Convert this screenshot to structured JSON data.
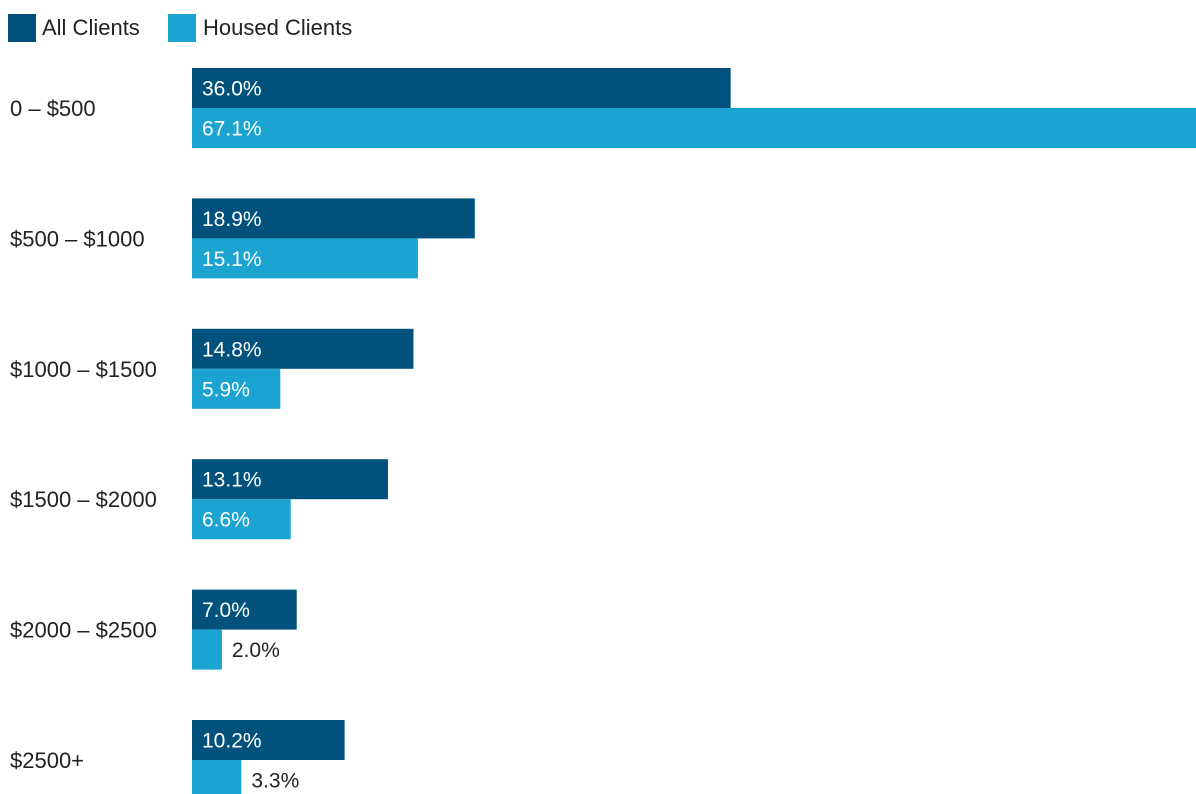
{
  "colors": {
    "all_clients": "#00527C",
    "housed_clients": "#1BA3D1",
    "label_inside": "#ffffff",
    "label_outside": "#222222"
  },
  "chart_data": {
    "type": "bar",
    "orientation": "horizontal",
    "categories": [
      "0 – $500",
      "$500 – $1000",
      "$1000 – $1500",
      "$1500 – $2000",
      "$2000 – $2500",
      "$2500+"
    ],
    "series": [
      {
        "name": "All Clients",
        "values": [
          36.0,
          18.9,
          14.8,
          13.1,
          7.0,
          10.2
        ],
        "labels": [
          "36.0%",
          "18.9%",
          "14.8%",
          "13.1%",
          "7.0%",
          "10.2%"
        ]
      },
      {
        "name": "Housed Clients",
        "values": [
          67.1,
          15.1,
          5.9,
          6.6,
          2.0,
          3.3
        ],
        "labels": [
          "67.1%",
          "15.1%",
          "5.9%",
          "6.6%",
          "2.0%",
          "3.3%"
        ]
      }
    ],
    "xlim": [
      0,
      67.1
    ],
    "grid": false,
    "legend_position": "top-left",
    "value_unit": "%"
  }
}
